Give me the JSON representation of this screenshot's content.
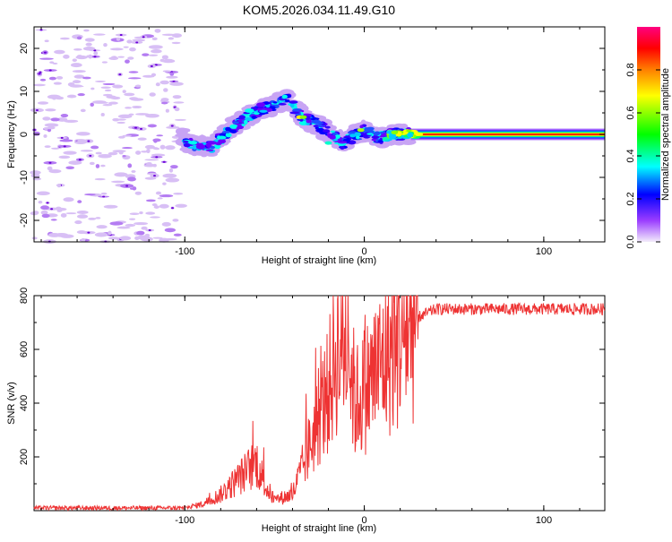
{
  "title": "KOM5.2026.034.11.49.G10",
  "chart_data": [
    {
      "type": "heatmap",
      "name": "spectrogram",
      "xlabel": "Height of straight line (km)",
      "ylabel": "Frequency (Hz)",
      "xlim": [
        -184,
        134
      ],
      "ylim": [
        -25,
        25
      ],
      "x_ticks": [
        -100,
        0,
        100
      ],
      "y_ticks": [
        -20,
        -10,
        0,
        10,
        20
      ],
      "colorbar": {
        "label": "Normalized spectral amplitude",
        "range": [
          0,
          1
        ],
        "ticks": [
          0.0,
          0.2,
          0.4,
          0.6,
          0.8
        ],
        "colors": [
          "#e9ddf7",
          "#8000ff",
          "#0000ff",
          "#00ffff",
          "#00ff00",
          "#ffff00",
          "#ff8000",
          "#ff0000",
          "#ff0080"
        ]
      },
      "track": {
        "description_points_height_km_freq_hz": [
          [
            -100,
            -2
          ],
          [
            -85,
            -3
          ],
          [
            -75,
            1
          ],
          [
            -62,
            5
          ],
          [
            -50,
            7
          ],
          [
            -42,
            8
          ],
          [
            -35,
            4
          ],
          [
            -25,
            2
          ],
          [
            -12,
            -2
          ],
          [
            0,
            1
          ],
          [
            8,
            -1
          ],
          [
            15,
            0
          ],
          [
            25,
            0
          ],
          [
            134,
            0
          ]
        ]
      }
    },
    {
      "type": "line",
      "name": "snr",
      "xlabel": "Height of straight line (km)",
      "ylabel": "SNR (v/v)",
      "xlim": [
        -184,
        134
      ],
      "ylim": [
        0,
        800
      ],
      "x_ticks": [
        -100,
        0,
        100
      ],
      "y_ticks": [
        200,
        400,
        600,
        800
      ],
      "line_color": "#ee3333",
      "series": [
        {
          "name": "SNR",
          "x": [
            -184,
            -150,
            -120,
            -100,
            -90,
            -80,
            -70,
            -60,
            -55,
            -50,
            -40,
            -35,
            -30,
            -25,
            -20,
            -15,
            -10,
            -5,
            0,
            10,
            20,
            30,
            40,
            60,
            80,
            100,
            120,
            134
          ],
          "y": [
            10,
            10,
            10,
            10,
            25,
            60,
            120,
            180,
            90,
            40,
            60,
            150,
            250,
            350,
            450,
            600,
            650,
            400,
            450,
            550,
            650,
            720,
            750,
            750,
            750,
            750,
            750,
            750
          ]
        }
      ]
    }
  ]
}
